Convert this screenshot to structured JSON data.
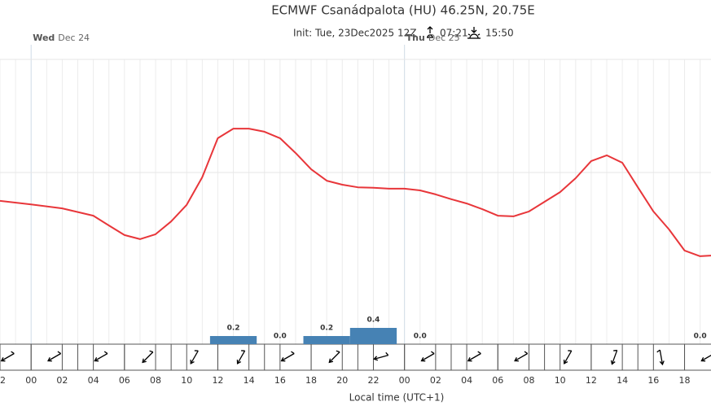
{
  "chart_data": {
    "type": "line",
    "title": "ECMWF Csanádpalota (HU) 46.25N, 20.75E",
    "subtitle": "Init: Tue, 23Dec2025 12Z",
    "sunrise": "07:21",
    "sunset": "15:50",
    "xlabel": "Local time (UTC+1)",
    "days": [
      {
        "x": 0,
        "day": "Wed",
        "date": "Dec 24"
      },
      {
        "x": 24,
        "day": "Thu",
        "date": "Dec 25"
      }
    ],
    "xlim": [
      -2,
      43.7
    ],
    "xticks": [
      {
        "value": -2,
        "label": "22"
      },
      {
        "value": 0,
        "label": "00"
      },
      {
        "value": 2,
        "label": "02"
      },
      {
        "value": 4,
        "label": "04"
      },
      {
        "value": 6,
        "label": "06"
      },
      {
        "value": 8,
        "label": "08"
      },
      10,
      12,
      14,
      16,
      18,
      20,
      22,
      {
        "value": 24,
        "label": "00"
      },
      {
        "value": 26,
        "label": "02"
      },
      {
        "value": 28,
        "label": "04"
      },
      {
        "value": 30,
        "label": "06"
      },
      {
        "value": 32,
        "label": "08"
      },
      {
        "value": 34,
        "label": "10"
      },
      {
        "value": 36,
        "label": "12"
      },
      {
        "value": 38,
        "label": "14"
      },
      {
        "value": 40,
        "label": "16"
      },
      {
        "value": 42,
        "label": "18"
      }
    ],
    "ylim": [
      0,
      10
    ],
    "color": "#e8363a",
    "x": [
      -2,
      0,
      2,
      4,
      5,
      6,
      7,
      8,
      9,
      10,
      11,
      12,
      13,
      14,
      15,
      16,
      17,
      18,
      19,
      20,
      21,
      22,
      23,
      24,
      25,
      26,
      27,
      28,
      29,
      30,
      31,
      32,
      33,
      34,
      35,
      36,
      37,
      38,
      39,
      40,
      41,
      42,
      43,
      43.7
    ],
    "values": [
      5.03,
      4.91,
      4.77,
      4.51,
      4.17,
      3.83,
      3.69,
      3.86,
      4.31,
      4.89,
      5.86,
      7.23,
      7.57,
      7.57,
      7.46,
      7.23,
      6.71,
      6.14,
      5.74,
      5.6,
      5.51,
      5.49,
      5.46,
      5.46,
      5.4,
      5.26,
      5.09,
      4.94,
      4.74,
      4.51,
      4.49,
      4.66,
      5.0,
      5.34,
      5.83,
      6.43,
      6.63,
      6.37,
      5.51,
      4.66,
      4.03,
      3.29,
      3.09,
      3.11
    ],
    "precip": {
      "x": [
        13,
        16,
        19,
        22,
        25,
        43
      ],
      "values": [
        0.2,
        0.0,
        0.2,
        0.4,
        0.0,
        0.0
      ],
      "value_labels": [
        "0.2",
        "0.0",
        "0.2",
        "0.4",
        "0.0",
        "0.0"
      ],
      "color": "#4682b4",
      "ylim": [
        0,
        7
      ]
    },
    "wind": {
      "x": [
        -1.5,
        1.5,
        4.5,
        7.5,
        10.5,
        13.5,
        16.5,
        19.5,
        22.5,
        25.5,
        28.5,
        31.5,
        34.5,
        37.5,
        40.5,
        43.5
      ],
      "direction": [
        240,
        240,
        240,
        225,
        210,
        210,
        240,
        225,
        255,
        240,
        240,
        240,
        210,
        200,
        170,
        240
      ]
    }
  }
}
